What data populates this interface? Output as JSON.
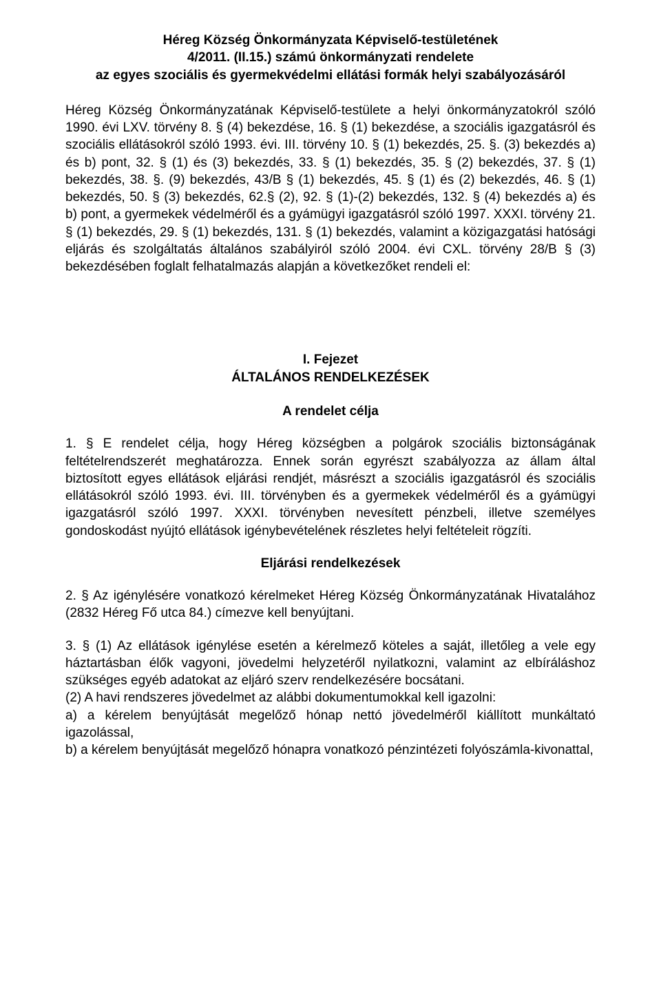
{
  "title": {
    "line1": "Héreg Község Önkormányzata Képviselő-testületének",
    "line2": "4/2011. (II.15.) számú önkormányzati rendelete",
    "line3": "az egyes szociális és gyermekvédelmi ellátási formák helyi szabályozásáról"
  },
  "preamble": "Héreg Község Önkormányzatának Képviselő-testülete a helyi önkormányzatokról szóló 1990. évi LXV. törvény 8. § (4) bekezdése, 16. § (1) bekezdése, a szociális igazgatásról és szociális ellátásokról szóló 1993. évi. III. törvény 10. § (1) bekezdés, 25. §. (3) bekezdés a) és b) pont, 32. § (1) és (3) bekezdés, 33. § (1) bekezdés, 35. § (2) bekezdés, 37. § (1) bekezdés, 38. §. (9) bekezdés, 43/B § (1) bekezdés, 45. § (1) és (2) bekezdés, 46. § (1) bekezdés, 50. § (3) bekezdés, 62.§ (2), 92. § (1)-(2) bekezdés, 132. § (4) bekezdés a) és b) pont, a gyermekek védelméről és a gyámügyi igazgatásról szóló 1997. XXXI. törvény 21. § (1) bekezdés, 29. § (1) bekezdés, 131. § (1) bekezdés, valamint a közigazgatási hatósági eljárás és szolgáltatás általános szabályiról szóló 2004. évi CXL. törvény 28/B § (3) bekezdésében foglalt felhatalmazás alapján a következőket rendeli el:",
  "chapter": {
    "num": "I. Fejezet",
    "title": "ÁLTALÁNOS RENDELKEZÉSEK"
  },
  "section_a_title": "A rendelet célja",
  "para1": "1. § E rendelet célja, hogy Héreg községben a polgárok szociális biztonságának feltételrendszerét meghatározza. Ennek során egyrészt szabályozza az állam által biztosított egyes ellátások eljárási rendjét, másrészt a szociális igazgatásról és szociális ellátásokról szóló 1993. évi. III. törvényben és a gyermekek védelméről és a gyámügyi igazgatásról szóló 1997. XXXI. törvényben nevesített pénzbeli, illetve személyes gondoskodást nyújtó ellátások igénybevételének részletes helyi feltételeit rögzíti.",
  "section_b_title": "Eljárási rendelkezések",
  "para2": "2. § Az igénylésére vonatkozó kérelmeket Héreg Község Önkormányzatának Hivatalához (2832 Héreg Fő utca 84.) címezve kell benyújtani.",
  "para3_1": "3. § (1) Az ellátások igénylése esetén a kérelmező köteles a saját, illetőleg a vele egy háztartásban élők vagyoni, jövedelmi helyzetéről nyilatkozni, valamint az elbíráláshoz szükséges egyéb adatokat az eljáró szerv rendelkezésére bocsátani.",
  "para3_2": "(2) A havi rendszeres jövedelmet az alábbi dokumentumokkal kell igazolni:",
  "para3_a": "a) a kérelem benyújtását megelőző hónap nettó jövedelméről kiállított munkáltató igazolással,",
  "para3_b": "b) a kérelem benyújtását megelőző hónapra vonatkozó pénzintézeti folyószámla-kivonattal,"
}
